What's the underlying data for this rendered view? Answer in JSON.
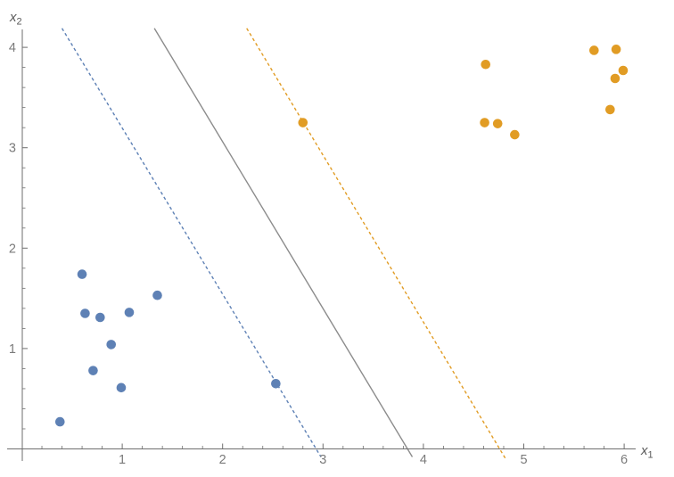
{
  "figure": {
    "background": "#ffffff",
    "x_axis_label": {
      "base": "x",
      "sub": "1"
    },
    "y_axis_label": {
      "base": "x",
      "sub": "2"
    }
  },
  "chart_data": {
    "type": "scatter",
    "title": "",
    "xlabel": "x_1",
    "ylabel": "x_2",
    "xlim": [
      -0.15,
      6.11
    ],
    "ylim": [
      -0.09,
      4.19
    ],
    "grid": false,
    "legend_position": "none",
    "x_ticks": {
      "values": [
        1,
        2,
        3,
        4,
        5,
        6
      ],
      "labels": [
        "1",
        "2",
        "3",
        "4",
        "5",
        "6"
      ]
    },
    "y_ticks": {
      "values": [
        1,
        2,
        3,
        4
      ],
      "labels": [
        "1",
        "2",
        "3",
        "4"
      ]
    },
    "minor_tick_step": 0.2,
    "colors": {
      "axis": "#6e6e6e",
      "tick_label": "#7a7a7a",
      "class_blue": "#5E81B5",
      "class_orange": "#E19C24",
      "decision_boundary": "#8c8c8c"
    },
    "series": [
      {
        "name": "class-blue",
        "color": "#5E81B5",
        "points": [
          [
            0.6,
            1.74
          ],
          [
            0.63,
            1.35
          ],
          [
            0.78,
            1.31
          ],
          [
            1.07,
            1.36
          ],
          [
            1.35,
            1.53
          ],
          [
            0.89,
            1.04
          ],
          [
            0.71,
            0.78
          ],
          [
            0.99,
            0.61
          ],
          [
            0.38,
            0.27
          ],
          [
            2.53,
            0.65
          ]
        ]
      },
      {
        "name": "class-orange",
        "color": "#E19C24",
        "points": [
          [
            4.62,
            3.83
          ],
          [
            5.7,
            3.97
          ],
          [
            5.92,
            3.98
          ],
          [
            5.99,
            3.77
          ],
          [
            5.91,
            3.69
          ],
          [
            5.86,
            3.38
          ],
          [
            4.61,
            3.25
          ],
          [
            4.74,
            3.24
          ],
          [
            4.91,
            3.13
          ],
          [
            2.8,
            3.25
          ]
        ]
      }
    ],
    "boundary_lines": [
      {
        "name": "lower-margin-line",
        "style": "dashed",
        "color": "#5E81B5",
        "from": [
          0.4,
          4.19
        ],
        "to": [
          2.98,
          -0.08
        ]
      },
      {
        "name": "decision-boundary-line",
        "style": "solid",
        "color": "#8c8c8c",
        "from": [
          1.32,
          4.19
        ],
        "to": [
          3.89,
          -0.08
        ]
      },
      {
        "name": "upper-margin-line",
        "style": "dashed",
        "color": "#E19C24",
        "from": [
          2.24,
          4.19
        ],
        "to": [
          4.82,
          -0.1
        ]
      }
    ]
  }
}
